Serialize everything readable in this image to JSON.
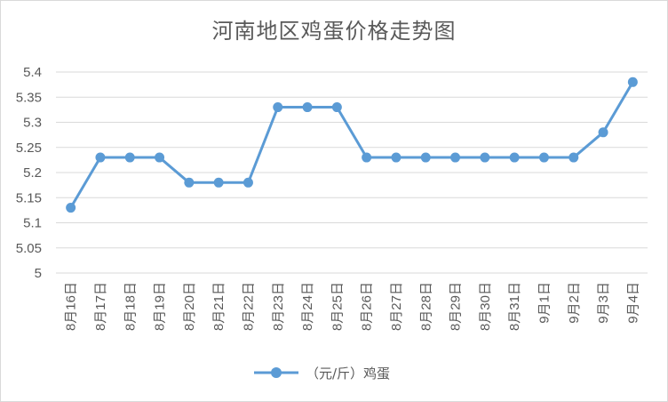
{
  "chart_data": {
    "type": "line",
    "title": "河南地区鸡蛋价格走势图",
    "categories": [
      "8月16日",
      "8月17日",
      "8月18日",
      "8月19日",
      "8月20日",
      "8月21日",
      "8月22日",
      "8月23日",
      "8月24日",
      "8月25日",
      "8月26日",
      "8月27日",
      "8月28日",
      "8月29日",
      "8月30日",
      "8月31日",
      "9月1日",
      "9月2日",
      "9月3日",
      "9月4日"
    ],
    "series": [
      {
        "name": "（元/斤）鸡蛋",
        "values": [
          5.13,
          5.23,
          5.23,
          5.23,
          5.18,
          5.18,
          5.18,
          5.33,
          5.33,
          5.33,
          5.23,
          5.23,
          5.23,
          5.23,
          5.23,
          5.23,
          5.23,
          5.23,
          5.28,
          5.38
        ]
      }
    ],
    "ylim": [
      5,
      5.4
    ],
    "yticks": [
      "5",
      "5.05",
      "5.1",
      "5.15",
      "5.2",
      "5.25",
      "5.3",
      "5.35",
      "5.4"
    ],
    "xlabel": "",
    "ylabel": "",
    "grid": true,
    "legend_position": "bottom",
    "colors": {
      "series": "#5b9bd5",
      "grid": "#d9d9d9",
      "text": "#595959"
    }
  }
}
